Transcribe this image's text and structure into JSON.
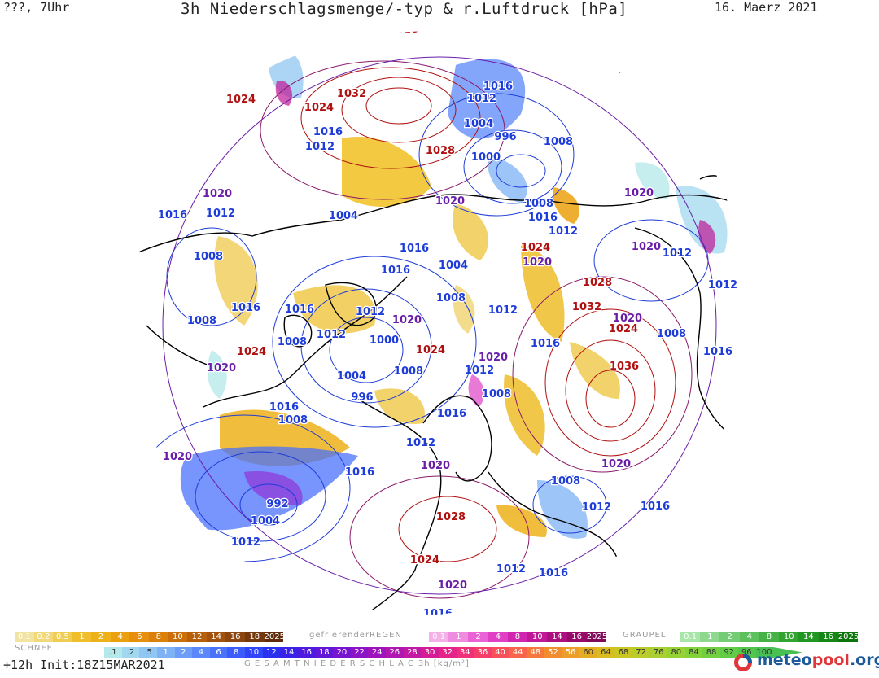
{
  "header": {
    "left": "???, 7Uhr",
    "title": "3h Niederschlagsmenge/-typ & r.Luftdruck [hPa]",
    "date": "16. Maerz 2021"
  },
  "isobar_labels": [
    {
      "text": "1028",
      "color": "#b01010"
    },
    {
      "text": "1032",
      "color": "#b01010"
    },
    {
      "text": "1024",
      "color": "#b01010"
    },
    {
      "text": "1024",
      "color": "#b01010"
    },
    {
      "text": "1016",
      "color": "#1e3cd8"
    },
    {
      "text": "1012",
      "color": "#1e3cd8"
    },
    {
      "text": "1028",
      "color": "#b01010"
    },
    {
      "text": "1016",
      "color": "#1e3cd8"
    },
    {
      "text": "1012",
      "color": "#1e3cd8"
    },
    {
      "text": "1004",
      "color": "#1e3cd8"
    },
    {
      "text": "996",
      "color": "#1e3cd8"
    },
    {
      "text": "1008",
      "color": "#1e3cd8"
    },
    {
      "text": "1000",
      "color": "#1e3cd8"
    },
    {
      "text": "1016",
      "color": "#6a1ea8"
    },
    {
      "text": "1020",
      "color": "#6a1ea8"
    },
    {
      "text": "1020",
      "color": "#6a1ea8"
    },
    {
      "text": "1016",
      "color": "#1e3cd8"
    },
    {
      "text": "1012",
      "color": "#1e3cd8"
    },
    {
      "text": "1004",
      "color": "#1e3cd8"
    },
    {
      "text": "1020",
      "color": "#6a1ea8"
    },
    {
      "text": "1008",
      "color": "#1e3cd8"
    },
    {
      "text": "1016",
      "color": "#1e3cd8"
    },
    {
      "text": "1012",
      "color": "#1e3cd8"
    },
    {
      "text": "1020",
      "color": "#6a1ea8"
    },
    {
      "text": "1008",
      "color": "#1e3cd8"
    },
    {
      "text": "1016",
      "color": "#1e3cd8"
    },
    {
      "text": "1004",
      "color": "#1e3cd8"
    },
    {
      "text": "1024",
      "color": "#b01010"
    },
    {
      "text": "1016",
      "color": "#1e3cd8"
    },
    {
      "text": "1012",
      "color": "#1e3cd8"
    },
    {
      "text": "1008",
      "color": "#1e3cd8"
    },
    {
      "text": "1020",
      "color": "#6a1ea8"
    },
    {
      "text": "1012",
      "color": "#1e3cd8"
    },
    {
      "text": "1012",
      "color": "#1e3cd8"
    },
    {
      "text": "1016",
      "color": "#1e3cd8"
    },
    {
      "text": "1016",
      "color": "#1e3cd8"
    },
    {
      "text": "1012",
      "color": "#1e3cd8"
    },
    {
      "text": "1020",
      "color": "#6a1ea8"
    },
    {
      "text": "1008",
      "color": "#1e3cd8"
    },
    {
      "text": "1008",
      "color": "#1e3cd8"
    },
    {
      "text": "1012",
      "color": "#1e3cd8"
    },
    {
      "text": "1000",
      "color": "#1e3cd8"
    },
    {
      "text": "1024",
      "color": "#b01010"
    },
    {
      "text": "1028",
      "color": "#b01010"
    },
    {
      "text": "1032",
      "color": "#b01010"
    },
    {
      "text": "1020",
      "color": "#6a1ea8"
    },
    {
      "text": "1024",
      "color": "#b01010"
    },
    {
      "text": "1008",
      "color": "#1e3cd8"
    },
    {
      "text": "1016",
      "color": "#1e3cd8"
    },
    {
      "text": "1036",
      "color": "#b01010"
    },
    {
      "text": "1024",
      "color": "#b01010"
    },
    {
      "text": "1020",
      "color": "#6a1ea8"
    },
    {
      "text": "1004",
      "color": "#1e3cd8"
    },
    {
      "text": "1008",
      "color": "#1e3cd8"
    },
    {
      "text": "996",
      "color": "#1e3cd8"
    },
    {
      "text": "1012",
      "color": "#1e3cd8"
    },
    {
      "text": "1008",
      "color": "#1e3cd8"
    },
    {
      "text": "1020",
      "color": "#6a1ea8"
    },
    {
      "text": "1016",
      "color": "#1e3cd8"
    },
    {
      "text": "1008",
      "color": "#1e3cd8"
    },
    {
      "text": "1016",
      "color": "#1e3cd8"
    },
    {
      "text": "1020",
      "color": "#6a1ea8"
    },
    {
      "text": "1012",
      "color": "#1e3cd8"
    },
    {
      "text": "1020",
      "color": "#6a1ea8"
    },
    {
      "text": "1016",
      "color": "#1e3cd8"
    },
    {
      "text": "992",
      "color": "#1e3cd8"
    },
    {
      "text": "1004",
      "color": "#1e3cd8"
    },
    {
      "text": "1012",
      "color": "#1e3cd8"
    },
    {
      "text": "1028",
      "color": "#b01010"
    },
    {
      "text": "1008",
      "color": "#1e3cd8"
    },
    {
      "text": "1012",
      "color": "#1e3cd8"
    },
    {
      "text": "1016",
      "color": "#1e3cd8"
    },
    {
      "text": "1020",
      "color": "#6a1ea8"
    },
    {
      "text": "1024",
      "color": "#b01010"
    },
    {
      "text": "1012",
      "color": "#1e3cd8"
    },
    {
      "text": "1016",
      "color": "#1e3cd8"
    },
    {
      "text": "1020",
      "color": "#6a1ea8"
    },
    {
      "text": "1016",
      "color": "#1e3cd8"
    },
    {
      "text": "1016",
      "color": "#1e3cd8"
    }
  ],
  "legend": {
    "snow": {
      "title": "SCHNEE",
      "labels": [
        "0.1",
        "0.2",
        "0.5",
        "1",
        "2",
        "4",
        "6",
        "8",
        "10",
        "12",
        "14",
        "16",
        "18",
        "2025+"
      ],
      "colors": [
        "#f3e3a0",
        "#f1d87a",
        "#f0cc52",
        "#efbe2a",
        "#eeb11a",
        "#eba10f",
        "#e6900d",
        "#dc800a",
        "#cc6f0a",
        "#b85f0a",
        "#a2520d",
        "#8c460f",
        "#76390e",
        "#5e2c0c"
      ]
    },
    "freezing_rain": {
      "title": "gefrierenderREGEN",
      "labels": [
        "0.1",
        "1",
        "2",
        "4",
        "8",
        "10",
        "14",
        "16",
        "2025+"
      ],
      "colors": [
        "#f6b0e8",
        "#f08ce0",
        "#ea62d6",
        "#e040c6",
        "#d226b0",
        "#c01896",
        "#ac107e",
        "#980a6a",
        "#800a58"
      ]
    },
    "graupel": {
      "title": "GRAUPEL",
      "labels": [
        "0.1",
        "1",
        "2",
        "4",
        "8",
        "10",
        "14",
        "16",
        "2025+"
      ],
      "colors": [
        "#a6e6a6",
        "#8ed88e",
        "#74cc74",
        "#5cc05c",
        "#46b246",
        "#32a432",
        "#229622",
        "#168616",
        "#0c760c"
      ]
    },
    "total": {
      "title": "G E S A M T N I E D E R S C H L A G   3h   [kg/m²]",
      "labels": [
        ".1",
        ".2",
        ".5",
        "1",
        "2",
        "4",
        "6",
        "8",
        "10",
        "12",
        "14",
        "16",
        "18",
        "20",
        "22",
        "24",
        "26",
        "28",
        "30",
        "32",
        "34",
        "36",
        "40",
        "44",
        "48",
        "52",
        "56",
        "60",
        "64",
        "68",
        "72",
        "76",
        "80",
        "84",
        "88",
        "92",
        "96",
        "100"
      ],
      "colors": [
        "#b4e8ea",
        "#a2d8ef",
        "#90c6f2",
        "#7eb2f5",
        "#6c9ef8",
        "#5a88fa",
        "#4a72fb",
        "#3c5cfb",
        "#3046f8",
        "#2a32f0",
        "#3a22e8",
        "#4e1ae0",
        "#6216d8",
        "#7614d0",
        "#8a14c6",
        "#9e14bc",
        "#b016b0",
        "#c218a4",
        "#d41c96",
        "#e42488",
        "#f02e7a",
        "#f63e6a",
        "#f8505a",
        "#f8644a",
        "#f6783c",
        "#f28c30",
        "#ec9e28",
        "#e4ae22",
        "#d8bc20",
        "#cac624",
        "#bacc2a",
        "#a8d030",
        "#96d234",
        "#84d23a",
        "#72d040",
        "#62cc46",
        "#54c64c",
        "#48c052"
      ]
    }
  },
  "footer": {
    "run": "+12h  Init:18Z15MAR2021",
    "brand_a": "meteo",
    "brand_b": "pool",
    "brand_c": ".org"
  }
}
